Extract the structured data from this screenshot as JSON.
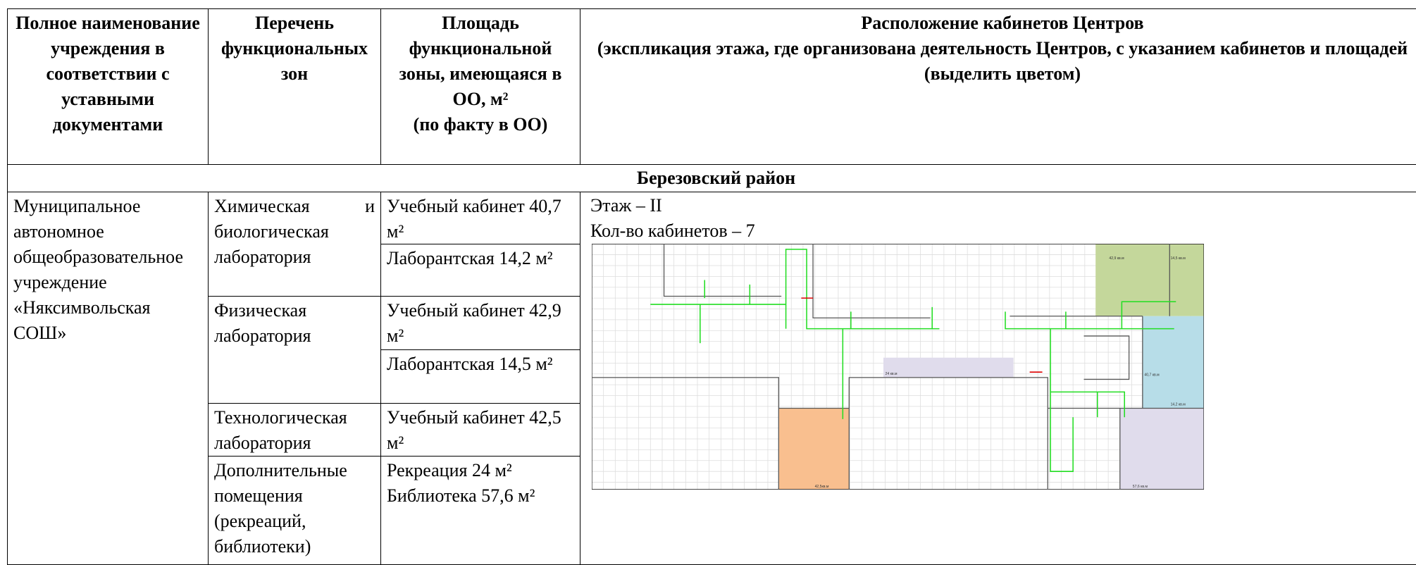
{
  "header": {
    "columns": [
      "Полное наименование учреждения в соответствии с уставными документами",
      "Перечень функциональных зон",
      "Площадь функциональной зоны, имеющаяся в ОО, м²\n(по факту в ОО)",
      "Расположение кабинетов Центров\n(экспликация этажа, где организована деятельность Центров, с указанием кабинетов и площадей (выделить цветом)"
    ]
  },
  "section": "Березовский район",
  "row": {
    "institution": "Муниципальное автономное общеобразовательное учреждение «Няксимвольская СОШ»",
    "zones": [
      {
        "name": "Химическая и биологическая лаборатория",
        "areas": [
          "Учебный кабинет 40,7 м²",
          "Лаборантская 14,2 м²"
        ]
      },
      {
        "name": "Физическая лаборатория",
        "areas": [
          "Учебный кабинет 42,9 м²",
          "Лаборантская 14,5 м²"
        ]
      },
      {
        "name": "Технологическая лаборатория",
        "areas": [
          "Учебный кабинет 42,5 м²"
        ]
      },
      {
        "name": "Дополнительные помещения (рекреаций, библиотеки)",
        "areas": [
          "Рекреация 24 м²",
          "Библиотека 57,6 м²"
        ]
      }
    ],
    "plan": {
      "floor": "Этаж – II",
      "rooms": "Кол-во кабинетов – 7",
      "labels": [
        "42,9 кв.м",
        "14,5 кв.м",
        "24 кв.м",
        "40,7 кв.м",
        "14,2 кв.м",
        "42,5кв.м",
        "57,6 кв.м"
      ]
    }
  }
}
